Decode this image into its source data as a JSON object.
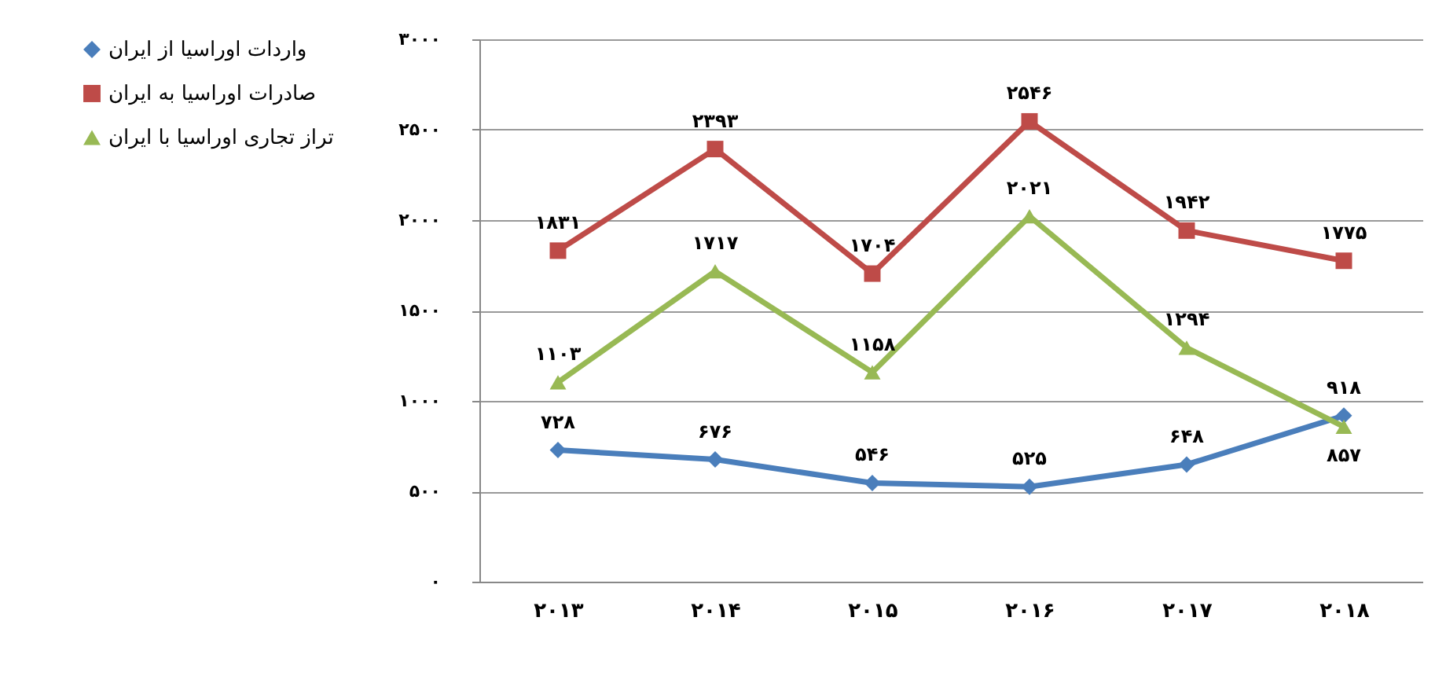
{
  "chart_data": {
    "type": "line",
    "categories": [
      "۲۰۱۳",
      "۲۰۱۴",
      "۲۰۱۵",
      "۲۰۱۶",
      "۲۰۱۷",
      "۲۰۱۸"
    ],
    "series": [
      {
        "name": "واردات اوراسیا از ایران",
        "color": "#4a7ebb",
        "marker": "diamond",
        "values": [
          728,
          676,
          546,
          525,
          648,
          918
        ],
        "value_labels": [
          "۷۲۸",
          "۶۷۶",
          "۵۴۶",
          "۵۲۵",
          "۶۴۸",
          "۹۱۸"
        ]
      },
      {
        "name": "صادرات اوراسیا به ایران",
        "color": "#be4b48",
        "marker": "square",
        "values": [
          1831,
          2393,
          1704,
          2546,
          1942,
          1775
        ],
        "value_labels": [
          "۱۸۳۱",
          "۲۳۹۳",
          "۱۷۰۴",
          "۲۵۴۶",
          "۱۹۴۲",
          "۱۷۷۵"
        ]
      },
      {
        "name": "تراز تجاری اوراسیا با ایران",
        "color": "#98b954",
        "marker": "triangle",
        "values": [
          1103,
          1717,
          1158,
          2021,
          1294,
          857
        ],
        "value_labels": [
          "۱۱۰۳",
          "۱۷۱۷",
          "۱۱۵۸",
          "۲۰۲۱",
          "۱۲۹۴",
          "۸۵۷"
        ]
      }
    ],
    "ylim": [
      0,
      3000
    ],
    "yticks": [
      {
        "value": 0,
        "label": "۰"
      },
      {
        "value": 500,
        "label": "۵۰۰"
      },
      {
        "value": 1000,
        "label": "۱۰۰۰"
      },
      {
        "value": 1500,
        "label": "۱۵۰۰"
      },
      {
        "value": 2000,
        "label": "۲۰۰۰"
      },
      {
        "value": 2500,
        "label": "۲۵۰۰"
      },
      {
        "value": 3000,
        "label": "۳۰۰۰"
      }
    ],
    "grid": "y",
    "legend": "left",
    "line_style": "solid"
  }
}
